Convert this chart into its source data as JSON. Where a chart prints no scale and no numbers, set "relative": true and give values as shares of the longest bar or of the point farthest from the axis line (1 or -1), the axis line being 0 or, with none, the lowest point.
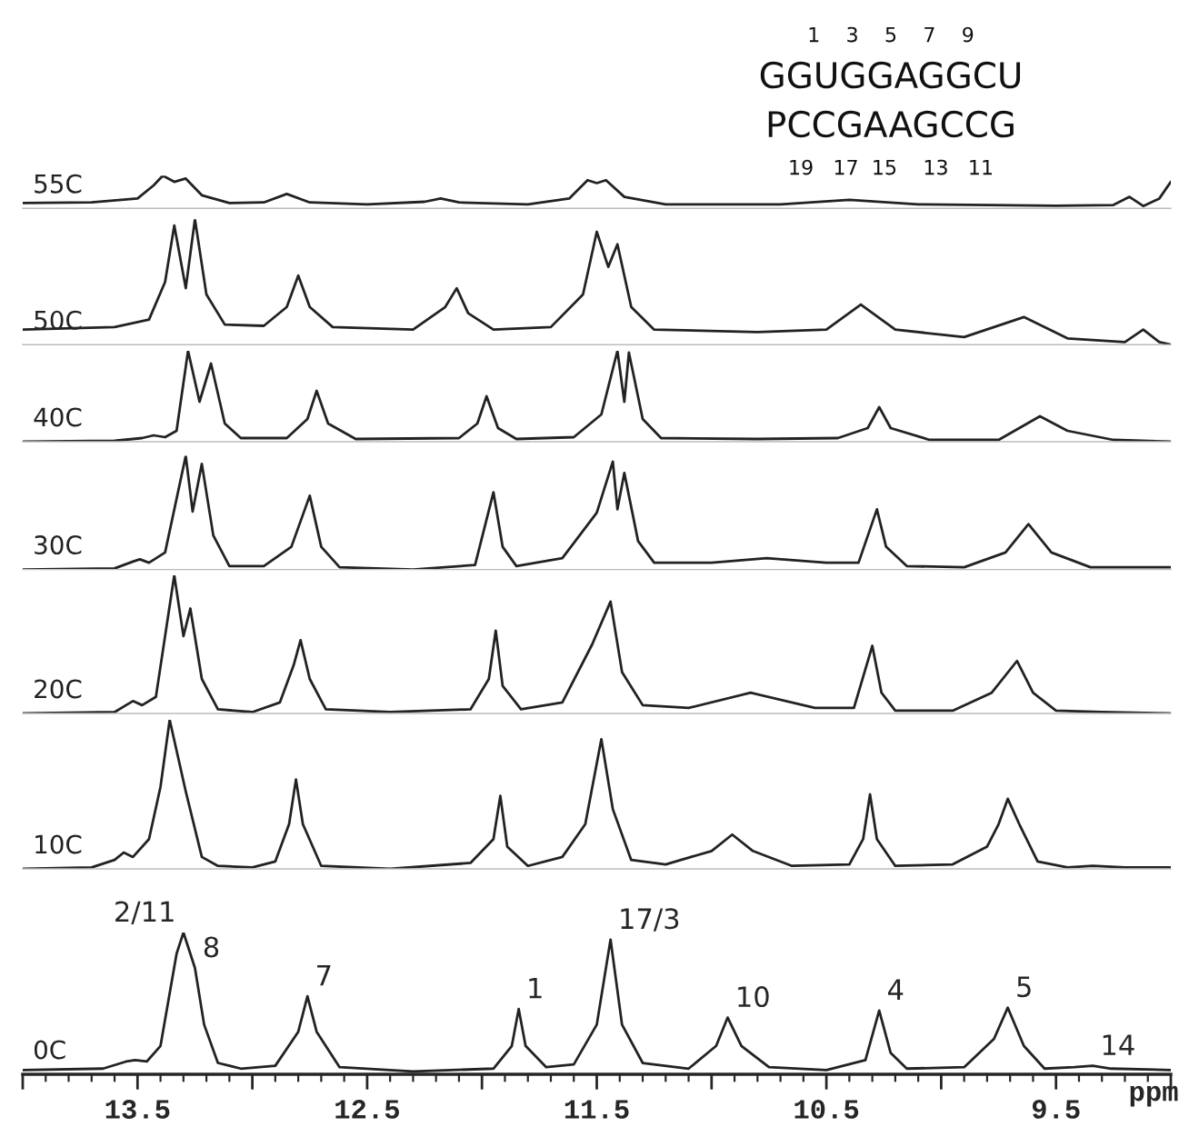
{
  "chart_data": [
    {
      "type": "line",
      "relative": true,
      "xlim": [
        14.0,
        9.0
      ],
      "tick_labels": false,
      "legend": false,
      "grid": false,
      "annotations": [
        "1    3    5    7    9",
        "GGUGGAGGCU",
        "PCCGAAGCCG",
        "19   17  15    13   11"
      ],
      "series": [
        {
          "name": "55C",
          "color": "#222222",
          "x": [
            14.0,
            13.7,
            13.5,
            13.43,
            13.39,
            13.34,
            13.29,
            13.22,
            13.1,
            12.95,
            12.85,
            12.75,
            12.5,
            12.25,
            12.18,
            12.1,
            11.8,
            11.62,
            11.54,
            11.5,
            11.46,
            11.38,
            11.2,
            10.7,
            10.4,
            10.1,
            9.5,
            9.25,
            9.18,
            9.12,
            9.05,
            9.0
          ],
          "values": [
            0.16,
            0.18,
            0.3,
            0.7,
            1.0,
            0.81,
            0.91,
            0.4,
            0.16,
            0.18,
            0.44,
            0.18,
            0.12,
            0.2,
            0.3,
            0.18,
            0.12,
            0.3,
            0.86,
            0.77,
            0.86,
            0.35,
            0.12,
            0.12,
            0.26,
            0.12,
            0.08,
            0.1,
            0.35,
            0.07,
            0.3,
            0.81
          ]
        }
      ]
    },
    {
      "type": "line",
      "relative": true,
      "xlim": [
        14.0,
        9.0
      ],
      "tick_labels": false,
      "legend": false,
      "grid": false,
      "series": [
        {
          "name": "50C",
          "color": "#222222",
          "x": [
            14.0,
            13.6,
            13.45,
            13.38,
            13.34,
            13.29,
            13.25,
            13.2,
            13.12,
            12.95,
            12.85,
            12.8,
            12.75,
            12.65,
            12.3,
            12.16,
            12.11,
            12.06,
            11.95,
            11.7,
            11.56,
            11.5,
            11.45,
            11.41,
            11.35,
            11.25,
            10.8,
            10.5,
            10.35,
            10.2,
            9.9,
            9.64,
            9.45,
            9.2,
            9.12,
            9.05,
            9.0
          ],
          "values": [
            0.12,
            0.14,
            0.2,
            0.5,
            0.95,
            0.45,
            1.0,
            0.4,
            0.16,
            0.15,
            0.3,
            0.55,
            0.3,
            0.14,
            0.12,
            0.3,
            0.45,
            0.25,
            0.12,
            0.14,
            0.4,
            0.9,
            0.62,
            0.8,
            0.3,
            0.12,
            0.1,
            0.12,
            0.32,
            0.12,
            0.06,
            0.22,
            0.05,
            0.02,
            0.12,
            0.02,
            0.0
          ]
        }
      ]
    },
    {
      "type": "line",
      "relative": true,
      "xlim": [
        14.0,
        9.0
      ],
      "tick_labels": false,
      "legend": false,
      "grid": false,
      "series": [
        {
          "name": "40C",
          "color": "#222222",
          "x": [
            14.0,
            13.6,
            13.48,
            13.43,
            13.38,
            13.33,
            13.28,
            13.23,
            13.18,
            13.12,
            13.05,
            12.85,
            12.76,
            12.72,
            12.67,
            12.55,
            12.1,
            12.02,
            11.98,
            11.93,
            11.85,
            11.6,
            11.48,
            11.41,
            11.38,
            11.36,
            11.3,
            11.22,
            10.8,
            10.45,
            10.32,
            10.27,
            10.22,
            10.05,
            9.75,
            9.57,
            9.45,
            9.25,
            9.0
          ],
          "values": [
            0,
            0.01,
            0.04,
            0.07,
            0.05,
            0.12,
            1.0,
            0.44,
            0.86,
            0.2,
            0.04,
            0.04,
            0.25,
            0.56,
            0.2,
            0.03,
            0.04,
            0.2,
            0.5,
            0.15,
            0.03,
            0.05,
            0.3,
            1.0,
            0.44,
            0.98,
            0.25,
            0.04,
            0.03,
            0.04,
            0.15,
            0.38,
            0.15,
            0.02,
            0.02,
            0.28,
            0.12,
            0.02,
            0.0
          ]
        }
      ]
    },
    {
      "type": "line",
      "relative": true,
      "xlim": [
        14.0,
        9.0
      ],
      "tick_labels": false,
      "legend": false,
      "grid": false,
      "series": [
        {
          "name": "30C",
          "color": "#222222",
          "x": [
            14.0,
            13.6,
            13.52,
            13.49,
            13.45,
            13.38,
            13.29,
            13.26,
            13.22,
            13.17,
            13.1,
            12.95,
            12.83,
            12.75,
            12.7,
            12.62,
            12.3,
            12.03,
            11.95,
            11.91,
            11.85,
            11.65,
            11.5,
            11.43,
            11.41,
            11.38,
            11.32,
            11.25,
            11.0,
            10.76,
            10.5,
            10.36,
            10.28,
            10.24,
            10.15,
            9.9,
            9.72,
            9.62,
            9.52,
            9.35,
            9.0
          ],
          "values": [
            0,
            0.01,
            0.07,
            0.09,
            0.06,
            0.15,
            1.0,
            0.51,
            0.93,
            0.3,
            0.03,
            0.03,
            0.2,
            0.65,
            0.2,
            0.02,
            0.0,
            0.04,
            0.68,
            0.2,
            0.03,
            0.1,
            0.5,
            0.95,
            0.53,
            0.85,
            0.25,
            0.06,
            0.06,
            0.1,
            0.06,
            0.06,
            0.53,
            0.2,
            0.03,
            0.02,
            0.15,
            0.4,
            0.15,
            0.02,
            0.02
          ]
        }
      ]
    },
    {
      "type": "line",
      "relative": true,
      "xlim": [
        14.0,
        9.0
      ],
      "tick_labels": false,
      "legend": false,
      "grid": false,
      "series": [
        {
          "name": "20C",
          "color": "#222222",
          "x": [
            14.0,
            13.6,
            13.55,
            13.52,
            13.48,
            13.42,
            13.34,
            13.3,
            13.27,
            13.22,
            13.15,
            13.0,
            12.88,
            12.82,
            12.79,
            12.75,
            12.68,
            12.4,
            12.05,
            11.97,
            11.94,
            11.91,
            11.83,
            11.65,
            11.52,
            11.44,
            11.39,
            11.3,
            11.1,
            10.83,
            10.55,
            10.38,
            10.3,
            10.26,
            10.2,
            9.95,
            9.78,
            9.67,
            9.6,
            9.5,
            9.3,
            9.0
          ],
          "values": [
            0,
            0.01,
            0.06,
            0.09,
            0.06,
            0.12,
            1.0,
            0.56,
            0.76,
            0.25,
            0.03,
            0.01,
            0.08,
            0.35,
            0.53,
            0.25,
            0.03,
            0.01,
            0.03,
            0.25,
            0.6,
            0.2,
            0.03,
            0.08,
            0.5,
            0.81,
            0.3,
            0.06,
            0.04,
            0.15,
            0.04,
            0.04,
            0.49,
            0.15,
            0.02,
            0.02,
            0.15,
            0.38,
            0.15,
            0.02,
            0.01,
            0.0
          ]
        }
      ]
    },
    {
      "type": "line",
      "relative": true,
      "xlim": [
        14.0,
        9.0
      ],
      "tick_labels": false,
      "legend": false,
      "grid": false,
      "series": [
        {
          "name": "10C",
          "color": "#222222",
          "x": [
            14.0,
            13.7,
            13.6,
            13.56,
            13.52,
            13.45,
            13.4,
            13.36,
            13.29,
            13.22,
            13.15,
            13.0,
            12.9,
            12.84,
            12.81,
            12.78,
            12.7,
            12.4,
            12.05,
            11.95,
            11.92,
            11.89,
            11.8,
            11.65,
            11.55,
            11.48,
            11.43,
            11.35,
            11.2,
            11.0,
            10.91,
            10.82,
            10.65,
            10.4,
            10.34,
            10.31,
            10.28,
            10.2,
            9.95,
            9.8,
            9.75,
            9.71,
            9.66,
            9.58,
            9.45,
            9.34,
            9.2,
            9.0
          ],
          "values": [
            0,
            0.01,
            0.06,
            0.11,
            0.08,
            0.2,
            0.55,
            1.0,
            0.52,
            0.08,
            0.02,
            0.01,
            0.05,
            0.3,
            0.6,
            0.3,
            0.02,
            0.0,
            0.04,
            0.2,
            0.49,
            0.15,
            0.02,
            0.08,
            0.3,
            0.87,
            0.4,
            0.06,
            0.03,
            0.12,
            0.23,
            0.12,
            0.02,
            0.03,
            0.2,
            0.5,
            0.2,
            0.02,
            0.03,
            0.15,
            0.3,
            0.47,
            0.3,
            0.05,
            0.01,
            0.02,
            0.01,
            0.01
          ]
        }
      ]
    },
    {
      "type": "line",
      "relative": true,
      "xlim": [
        14.0,
        9.0
      ],
      "tick_labels": "x",
      "legend": false,
      "grid": false,
      "xlabel": "ppm",
      "xticks": [
        {
          "value": 14.0,
          "label": null
        },
        13.5,
        {
          "value": 13.0,
          "label": null
        },
        12.5,
        {
          "value": 12.0,
          "label": null
        },
        11.5,
        {
          "value": 11.0,
          "label": null
        },
        10.5,
        {
          "value": 10.0,
          "label": null
        },
        9.5,
        {
          "value": 9.0,
          "label": null
        }
      ],
      "annotations": [
        {
          "text": "2/11",
          "x": 13.3,
          "y": 1.0
        },
        {
          "text": "8",
          "x": 13.25,
          "y": 0.75
        },
        {
          "text": "7",
          "x": 12.76,
          "y": 0.55
        },
        {
          "text": "1",
          "x": 11.84,
          "y": 0.46
        },
        {
          "text": "17/3",
          "x": 11.44,
          "y": 0.95
        },
        {
          "text": "10",
          "x": 10.93,
          "y": 0.4
        },
        {
          "text": "4",
          "x": 10.27,
          "y": 0.45
        },
        {
          "text": "5",
          "x": 9.71,
          "y": 0.47
        },
        {
          "text": "14",
          "x": 9.34,
          "y": 0.06
        }
      ],
      "series": [
        {
          "name": "0C",
          "color": "#222222",
          "x": [
            14.0,
            13.65,
            13.55,
            13.51,
            13.46,
            13.4,
            13.33,
            13.3,
            13.25,
            13.21,
            13.15,
            13.05,
            12.9,
            12.8,
            12.76,
            12.72,
            12.62,
            12.3,
            11.95,
            11.87,
            11.84,
            11.81,
            11.72,
            11.6,
            11.5,
            11.44,
            11.39,
            11.3,
            11.1,
            10.98,
            10.93,
            10.87,
            10.75,
            10.5,
            10.33,
            10.27,
            10.22,
            10.15,
            9.9,
            9.77,
            9.71,
            9.64,
            9.55,
            9.42,
            9.34,
            9.26,
            9.0
          ],
          "values": [
            0.03,
            0.04,
            0.09,
            0.1,
            0.09,
            0.2,
            0.85,
            1.0,
            0.75,
            0.35,
            0.08,
            0.04,
            0.06,
            0.3,
            0.55,
            0.3,
            0.05,
            0.02,
            0.04,
            0.2,
            0.46,
            0.2,
            0.05,
            0.07,
            0.35,
            0.95,
            0.35,
            0.08,
            0.04,
            0.2,
            0.4,
            0.2,
            0.05,
            0.03,
            0.1,
            0.45,
            0.15,
            0.04,
            0.05,
            0.25,
            0.47,
            0.2,
            0.04,
            0.05,
            0.06,
            0.04,
            0.03
          ]
        }
      ]
    }
  ]
}
